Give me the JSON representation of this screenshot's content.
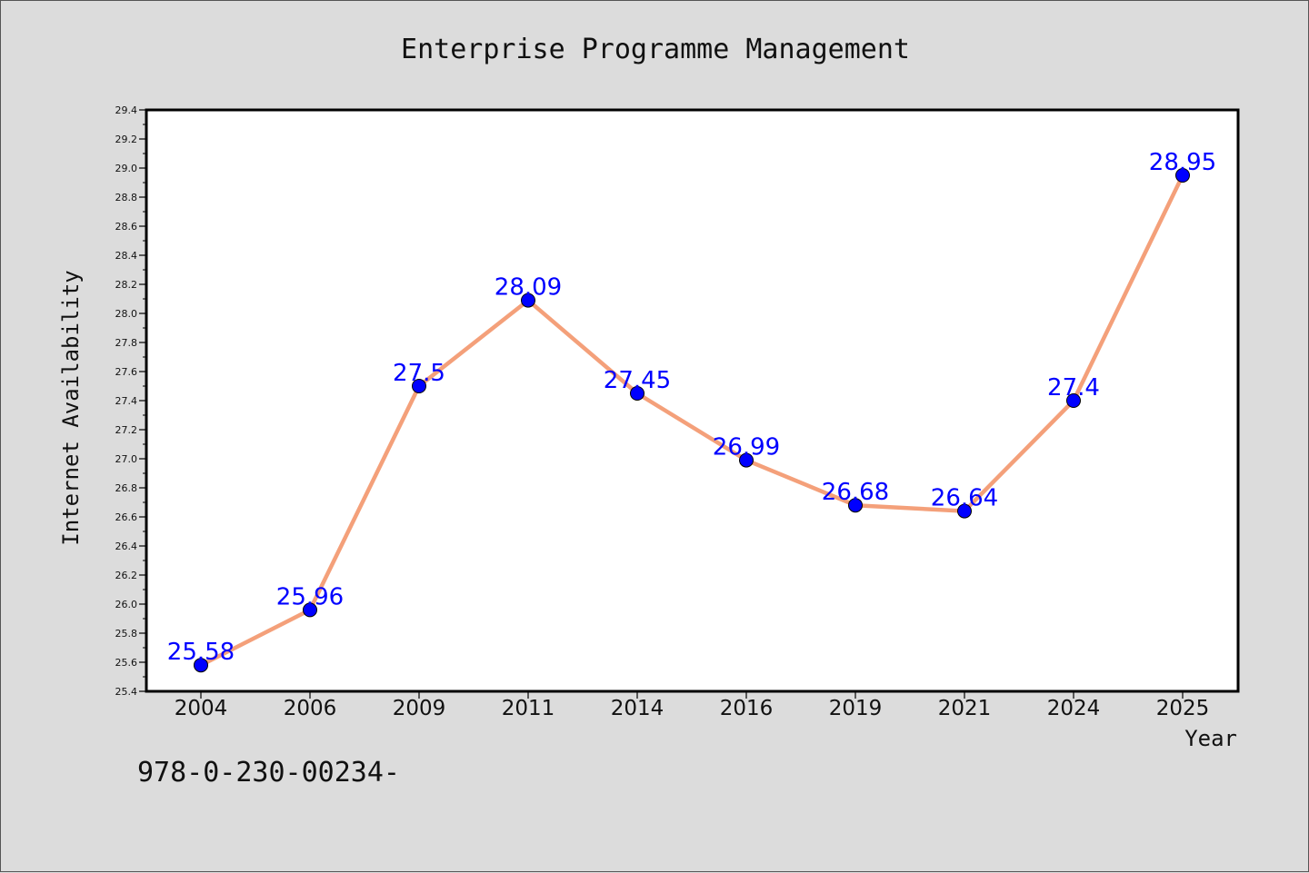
{
  "chart_data": {
    "type": "line",
    "title": "Enterprise Programme Management",
    "xlabel": "Year",
    "ylabel": "Internet Availability",
    "categories": [
      "2004",
      "2006",
      "2009",
      "2011",
      "2014",
      "2016",
      "2019",
      "2021",
      "2024",
      "2025"
    ],
    "series": [
      {
        "values": [
          25.58,
          25.96,
          27.5,
          28.09,
          27.45,
          26.99,
          26.68,
          26.64,
          27.4,
          28.95
        ],
        "data_labels": [
          "25.58",
          "25.96",
          "27.5",
          "28.09",
          "27.45",
          "26.99",
          "26.68",
          "26.64",
          "27.4",
          "28.95"
        ],
        "line_color": "#f4a07a",
        "marker_color": "#0000ff"
      }
    ],
    "ylim": [
      25.4,
      29.4
    ],
    "yticks": [
      "25.4",
      "25.6",
      "25.8",
      "26.0",
      "26.2",
      "26.4",
      "26.6",
      "26.8",
      "27.0",
      "27.2",
      "27.4",
      "27.6",
      "27.8",
      "28.0",
      "28.2",
      "28.4",
      "28.6",
      "28.8",
      "29.0",
      "29.2",
      "29.4"
    ],
    "grid": false,
    "legend": "none",
    "plot_background": "#ffffff",
    "figure_background": "#dcdcdc",
    "label_color": "#0000ff"
  },
  "footer": {
    "code": "978-0-230-00234-"
  }
}
